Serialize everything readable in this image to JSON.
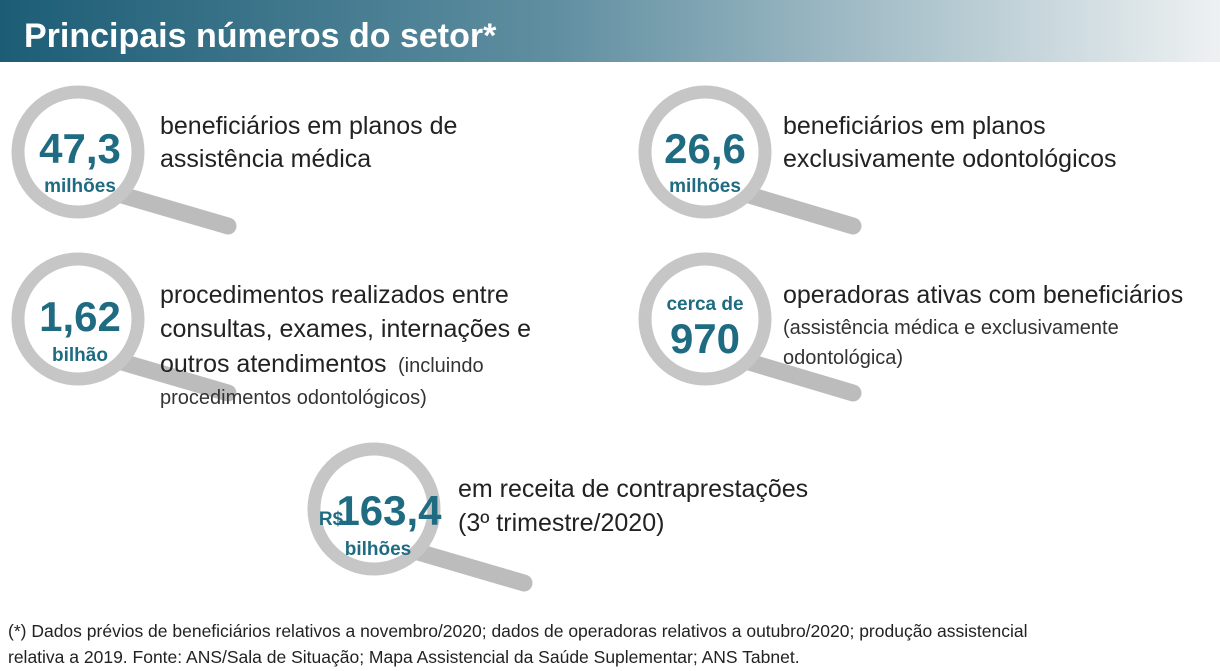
{
  "header": {
    "title": "Principais números do setor*"
  },
  "items": [
    {
      "number": "47,3",
      "unit": "milhões",
      "text": [
        "beneficiários em planos de",
        "assistência médica"
      ]
    },
    {
      "number": "26,6",
      "unit": "milhões",
      "text": [
        "beneficiários em planos",
        "exclusivamente odontológicos"
      ]
    },
    {
      "number": "1,62",
      "unit": "bilhão",
      "text": [
        "procedimentos realizados entre",
        "consultas, exames, internações e",
        "outros atendimentos"
      ],
      "note": [
        "(incluindo",
        "procedimentos odontológicos)"
      ]
    },
    {
      "prefix": "cerca de",
      "number": "970",
      "text": [
        "operadoras ativas com beneficiários"
      ],
      "note": [
        "(assistência médica e exclusivamente",
        "odontológica)"
      ]
    },
    {
      "prefix": "R$",
      "number": "163,4",
      "unit": "bilhões",
      "text": [
        "em receita de contraprestações",
        "(3º trimestre/2020)"
      ]
    }
  ],
  "footnote": [
    "(*) Dados prévios de beneficiários relativos a novembro/2020; dados de operadoras relativos a outubro/2020; produção assistencial",
    "relativa a 2019. Fonte: ANS/Sala de Situação; Mapa Assistencial da Saúde Suplementar; ANS Tabnet."
  ]
}
